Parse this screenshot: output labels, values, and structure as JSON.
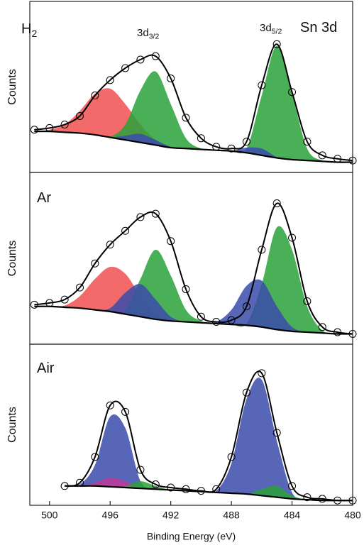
{
  "chart_data": [
    {
      "type": "xps",
      "ylabel": "Counts",
      "annotations": [
        {
          "text": "H",
          "sub": "2"
        },
        {
          "text": "3d",
          "sub": "3/2"
        },
        {
          "text": "3d",
          "sub": "5/2"
        },
        {
          "text": "Sn 3d"
        }
      ],
      "x": [
        501,
        500,
        499,
        498,
        497,
        496,
        495,
        494,
        493,
        492,
        491,
        490,
        489,
        488,
        487,
        486,
        485,
        484,
        483,
        482,
        481,
        480
      ],
      "xlim": [
        501.3,
        480
      ],
      "ylim": [
        0,
        100
      ],
      "series": [
        {
          "color": "#f0504f",
          "style": "fill",
          "values": [
            24,
            25,
            28,
            36,
            46,
            49,
            40,
            28,
            19,
            15,
            14,
            13.5,
            13,
            12.5,
            11.5,
            10,
            8.5,
            7.5,
            7,
            6.5,
            6,
            6
          ]
        },
        {
          "color": "#2aa23a",
          "style": "fill",
          "values": [
            24,
            24,
            23.5,
            23,
            22,
            21,
            28,
            48,
            59,
            40,
            20,
            14,
            13,
            12.5,
            14,
            45,
            74,
            46,
            14,
            7,
            6,
            6
          ]
        },
        {
          "color": "#3b4bab",
          "style": "fill",
          "values": [
            24,
            24,
            23.5,
            23,
            22,
            20.5,
            21.5,
            22.5,
            19,
            15,
            14,
            13.5,
            13,
            12.5,
            14.5,
            14,
            9,
            7.5,
            7,
            6.5,
            6,
            6
          ]
        },
        {
          "color": "#000000",
          "style": "line",
          "values": [
            24,
            24,
            23.5,
            23,
            22,
            20.5,
            19,
            17.5,
            16,
            14.5,
            14,
            13.5,
            13,
            12.5,
            11.5,
            10,
            8.5,
            7.5,
            7,
            6.5,
            6,
            6
          ]
        },
        {
          "color": "#000000",
          "style": "markers+line",
          "values": [
            25,
            26,
            28,
            33,
            45,
            54,
            61,
            66,
            68,
            55,
            32,
            20,
            15,
            14,
            18,
            51,
            75,
            47,
            18,
            10,
            8,
            7
          ]
        }
      ]
    },
    {
      "type": "xps",
      "ylabel": "Counts",
      "annotations": [
        {
          "text": "Ar"
        }
      ],
      "x": [
        501,
        500,
        499,
        498,
        497,
        496,
        495,
        494,
        493,
        492,
        491,
        490,
        489,
        488,
        487,
        486,
        485,
        484,
        483,
        482,
        481,
        480
      ],
      "xlim": [
        501.3,
        480
      ],
      "ylim": [
        0,
        100
      ],
      "series": [
        {
          "color": "#f0504f",
          "style": "fill",
          "values": [
            22,
            22,
            22.5,
            28,
            38,
            45,
            41,
            28,
            17,
            14,
            13,
            12.5,
            12,
            11.5,
            11,
            10,
            8.5,
            7.5,
            7,
            6.5,
            6,
            6
          ]
        },
        {
          "color": "#2aa23a",
          "style": "fill",
          "values": [
            22,
            22,
            21.5,
            21,
            20,
            19,
            20,
            38,
            55,
            40,
            20,
            13.5,
            12,
            11.5,
            12,
            35,
            68,
            55,
            22,
            8,
            6,
            6
          ]
        },
        {
          "color": "#3b4bab",
          "style": "fill",
          "values": [
            22,
            22,
            21.5,
            21,
            20,
            21,
            30,
            35,
            26,
            16,
            13,
            12.5,
            13,
            20,
            34,
            37,
            22,
            10,
            7,
            6.5,
            6,
            6
          ]
        },
        {
          "color": "#000000",
          "style": "line",
          "values": [
            22,
            22,
            21.5,
            21,
            20,
            19,
            17.5,
            16,
            14.5,
            13.5,
            13,
            12.5,
            12,
            11.5,
            11,
            10,
            8.5,
            7.5,
            7,
            6.5,
            6,
            6
          ]
        },
        {
          "color": "#000000",
          "style": "markers+line",
          "values": [
            23,
            24,
            26,
            33,
            47,
            58,
            66,
            74,
            76,
            60,
            32,
            16,
            13,
            14,
            22,
            55,
            82,
            62,
            25,
            10,
            7,
            6
          ]
        }
      ]
    },
    {
      "type": "xps",
      "ylabel": "Counts",
      "xlabel": "Binding Energy (eV)",
      "annotations": [
        {
          "text": "Air"
        }
      ],
      "x": [
        501,
        500,
        499,
        498,
        497,
        496,
        495,
        494,
        493,
        492,
        491,
        490,
        489,
        488,
        487,
        486,
        485,
        484,
        483,
        482,
        481,
        480
      ],
      "xlim": [
        501.3,
        480
      ],
      "ylim": [
        0,
        100
      ],
      "xticks": [
        500,
        496,
        492,
        488,
        484,
        480
      ],
      "series": [
        {
          "color": "#3b4bab",
          "style": "fill",
          "values": [
            null,
            null,
            12,
            13,
            25,
            55,
            48,
            15,
            10,
            9.5,
            9,
            8.5,
            9,
            26,
            66,
            78,
            40,
            8,
            3.5,
            3,
            3,
            3
          ]
        },
        {
          "color": "#c0399a",
          "style": "fill",
          "values": [
            null,
            null,
            12,
            12,
            14,
            17,
            15,
            11,
            10,
            9.5,
            9,
            8.5,
            8,
            7.5,
            7,
            6,
            5,
            4,
            3.5,
            3,
            3,
            3
          ]
        },
        {
          "color": "#2aa23a",
          "style": "fill",
          "values": [
            null,
            null,
            12,
            12,
            12,
            11.5,
            12,
            15,
            12,
            9.5,
            9,
            8.5,
            8,
            7.5,
            7,
            10,
            12,
            6,
            3.5,
            3,
            3,
            3
          ]
        },
        {
          "color": "#000000",
          "style": "line",
          "values": [
            null,
            null,
            12,
            12,
            12,
            11.5,
            11,
            10.5,
            10,
            9.5,
            9,
            8.5,
            8,
            7.5,
            7,
            6,
            5,
            4,
            3.5,
            3,
            3,
            3
          ]
        },
        {
          "color": "#000000",
          "style": "markers+line",
          "values": [
            null,
            null,
            12,
            14,
            30,
            62,
            58,
            22,
            13,
            11,
            10,
            9,
            10,
            30,
            70,
            82,
            45,
            12,
            5,
            4,
            3,
            3
          ]
        }
      ]
    }
  ]
}
